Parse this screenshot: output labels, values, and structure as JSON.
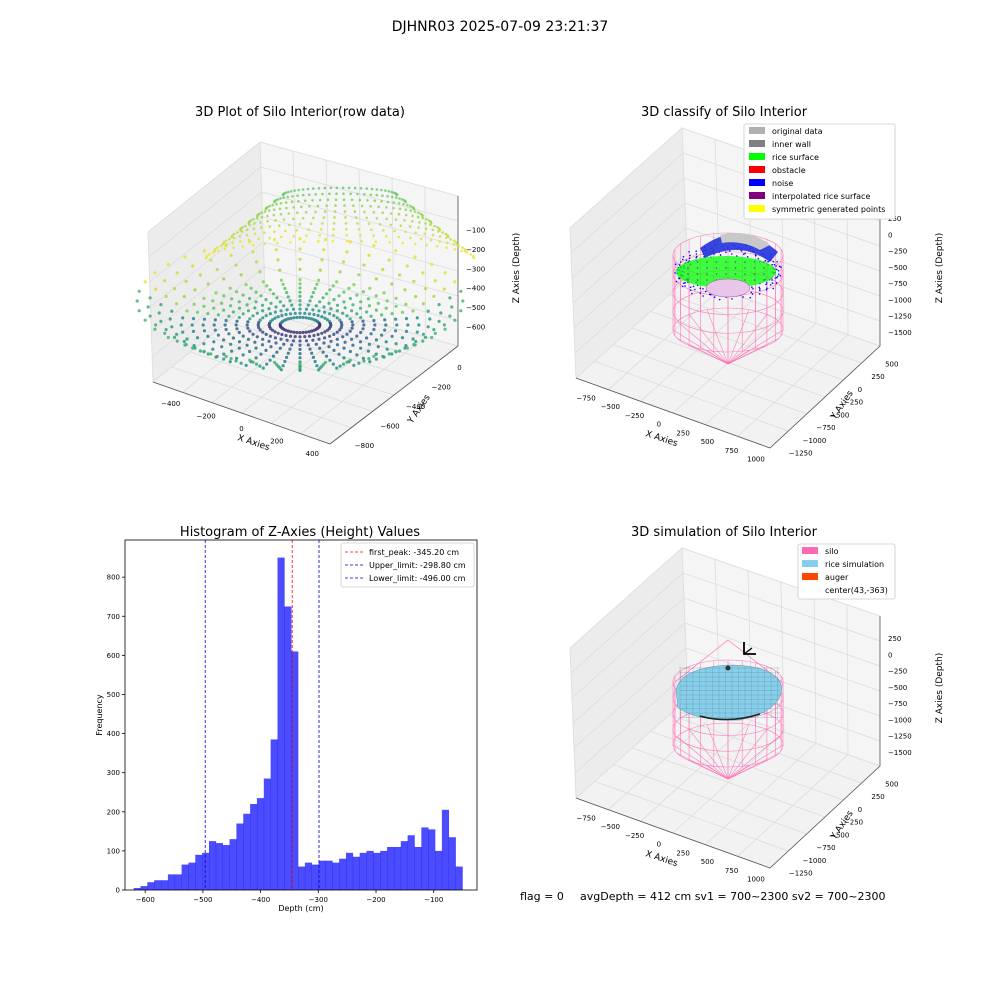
{
  "suptitle": "DJHNR03 2025-07-09 23:21:37",
  "footer": {
    "flag": "flag = 0",
    "stats": "avgDepth = 412 cm  sv1 = 700~2300  sv2 = 700~2300"
  },
  "chart_data": [
    {
      "type": "scatter",
      "title": "3D Plot of Silo Interior(row data)",
      "xlabel": "X Axies",
      "ylabel": "Y Axies",
      "zlabel": "Z Axies (Depth)",
      "x_ticks": [
        "−400",
        "−200",
        "0",
        "200",
        "400"
      ],
      "y_ticks": [
        "0",
        "−200",
        "−400",
        "−600",
        "−800"
      ],
      "z_ticks": [
        "−100",
        "−200",
        "−300",
        "−400",
        "−500",
        "−600"
      ],
      "x_range": [
        -450,
        450
      ],
      "y_range": [
        -800,
        100
      ],
      "z_range": [
        -650,
        -50
      ],
      "colormap": "viridis",
      "colors": {
        "low": "#440154",
        "mid": "#21908d",
        "high": "#fde725"
      }
    },
    {
      "type": "scatter",
      "title": "3D classify of Silo Interior",
      "xlabel": "X Axies",
      "ylabel": "Y Axies",
      "zlabel": "Z Axies (Depth)",
      "x_ticks": [
        "−750",
        "−500",
        "−250",
        "0",
        "250",
        "500",
        "750",
        "1000"
      ],
      "y_ticks": [
        "500",
        "250",
        "0",
        "−250",
        "−500",
        "−750",
        "−1000",
        "−1250"
      ],
      "z_ticks": [
        "250",
        "0",
        "−250",
        "−500",
        "−750",
        "−1000",
        "−1250",
        "−1500"
      ],
      "legend_position": "upper-right",
      "legend": [
        {
          "label": "original data",
          "color": "#b0b0b0"
        },
        {
          "label": "inner wall",
          "color": "#808080"
        },
        {
          "label": "rice surface",
          "color": "#00ff00"
        },
        {
          "label": "obstacle",
          "color": "#ff0000"
        },
        {
          "label": "noise",
          "color": "#0000ff"
        },
        {
          "label": "interpolated rice surface",
          "color": "#800080"
        },
        {
          "label": "symmetric generated points",
          "color": "#ffff00"
        }
      ]
    },
    {
      "type": "bar",
      "title": "Histogram of Z-Axies (Height) Values",
      "xlabel": "Depth (cm)",
      "ylabel": "Frequency",
      "xlim": [
        -635,
        -25
      ],
      "ylim": [
        0,
        895
      ],
      "x_ticks": [
        -600,
        -500,
        -400,
        -300,
        -200,
        -100
      ],
      "x_tick_labels": [
        "−600",
        "−500",
        "−400",
        "−300",
        "−200",
        "−100"
      ],
      "y_ticks": [
        0,
        100,
        200,
        300,
        400,
        500,
        600,
        700,
        800
      ],
      "bin_start": -620,
      "bin_width": 11.87,
      "values": [
        5,
        10,
        20,
        25,
        25,
        40,
        40,
        65,
        70,
        90,
        95,
        125,
        120,
        115,
        130,
        170,
        195,
        220,
        235,
        285,
        385,
        850,
        725,
        610,
        60,
        70,
        65,
        75,
        75,
        70,
        80,
        95,
        85,
        95,
        100,
        95,
        100,
        110,
        110,
        125,
        140,
        110,
        160,
        155,
        100,
        205,
        135,
        60
      ],
      "bar_color": "#0000ff",
      "lines": [
        {
          "label": "first_peak: -345.20 cm",
          "x": -345.2,
          "color": "#ff0000"
        },
        {
          "label": "Upper_limit: -298.80 cm",
          "x": -298.8,
          "color": "#0000cc"
        },
        {
          "label": "Lower_limit: -496.00 cm",
          "x": -496.0,
          "color": "#0000cc"
        }
      ],
      "legend_position": "upper-right"
    },
    {
      "type": "scatter",
      "title": "3D simulation of Silo Interior",
      "xlabel": "X Axies",
      "ylabel": "Y Axies",
      "zlabel": "Z Axies (Depth)",
      "x_ticks": [
        "−750",
        "−500",
        "−250",
        "0",
        "250",
        "500",
        "750",
        "1000"
      ],
      "y_ticks": [
        "500",
        "250",
        "0",
        "−250",
        "−500",
        "−750",
        "−1000",
        "−1250"
      ],
      "z_ticks": [
        "250",
        "0",
        "−250",
        "−500",
        "−750",
        "−1000",
        "−1250",
        "−1500"
      ],
      "legend_position": "upper-right",
      "legend": [
        {
          "label": "silo",
          "color": "#ff69b4"
        },
        {
          "label": "rice simulation",
          "color": "#87ceeb"
        },
        {
          "label": "auger",
          "color": "#ff4500"
        },
        {
          "label": "center(43,-363)",
          "color": "none"
        }
      ]
    }
  ]
}
